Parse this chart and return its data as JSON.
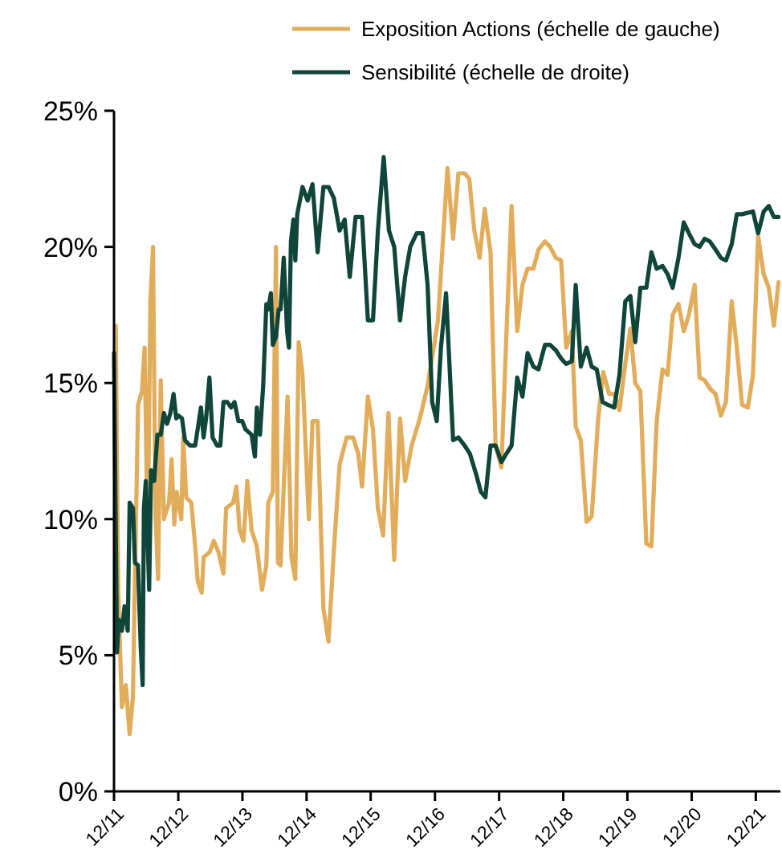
{
  "chart_data": {
    "type": "line",
    "legend": "top",
    "line_style": "solid",
    "marker": "none",
    "grid": false,
    "xlim": [
      "2011-12-01",
      "2022-04-20"
    ],
    "xticks": [
      {
        "value": "2011-12-01",
        "label": "12/11"
      },
      {
        "value": "2012-12-01",
        "label": "12/12"
      },
      {
        "value": "2013-12-01",
        "label": "12/13"
      },
      {
        "value": "2014-12-01",
        "label": "12/14"
      },
      {
        "value": "2015-12-01",
        "label": "12/15"
      },
      {
        "value": "2016-12-01",
        "label": "12/16"
      },
      {
        "value": "2017-12-01",
        "label": "12/17"
      },
      {
        "value": "2018-12-01",
        "label": "12/18"
      },
      {
        "value": "2019-12-01",
        "label": "12/19"
      },
      {
        "value": "2020-12-01",
        "label": "12/20"
      },
      {
        "value": "2021-12-01",
        "label": "12/21"
      }
    ],
    "ylim": [
      0,
      25
    ],
    "yticks": [
      {
        "value": 0,
        "label": "0%"
      },
      {
        "value": 5,
        "label": "5%"
      },
      {
        "value": 10,
        "label": "10%"
      },
      {
        "value": 15,
        "label": "15%"
      },
      {
        "value": 20,
        "label": "20%"
      },
      {
        "value": 25,
        "label": "25%"
      }
    ],
    "series": [
      {
        "name": "Exposition Actions (échelle de gauche)",
        "color": "#e2ad5b",
        "x": [
          "2011-12-11",
          "2011-12-25",
          "2012-01-15",
          "2012-02-06",
          "2012-02-28",
          "2012-03-18",
          "2012-03-29",
          "2012-04-16",
          "2012-05-08",
          "2012-05-23",
          "2012-06-10",
          "2012-06-25",
          "2012-07-10",
          "2012-07-24",
          "2012-08-08",
          "2012-08-23",
          "2012-09-10",
          "2012-10-09",
          "2012-10-24",
          "2012-11-08",
          "2012-11-22",
          "2012-12-18",
          "2012-12-29",
          "2013-01-15",
          "2013-02-13",
          "2013-03-07",
          "2013-03-22",
          "2013-04-13",
          "2013-04-24",
          "2013-05-30",
          "2013-06-21",
          "2013-07-17",
          "2013-08-15",
          "2013-08-30",
          "2013-10-09",
          "2013-10-28",
          "2013-11-15",
          "2013-12-07",
          "2013-12-29",
          "2014-01-22",
          "2014-02-21",
          "2014-03-22",
          "2014-04-16",
          "2014-04-27",
          "2014-05-23",
          "2014-06-10",
          "2014-06-21",
          "2014-07-06",
          "2014-07-24",
          "2014-08-15",
          "2014-09-06",
          "2014-09-28",
          "2014-10-17",
          "2014-11-08",
          "2014-12-14",
          "2015-01-04",
          "2015-02-02",
          "2015-03-07",
          "2015-04-05",
          "2015-05-05",
          "2015-06-07",
          "2015-07-17",
          "2015-08-23",
          "2015-09-21",
          "2015-10-13",
          "2015-11-15",
          "2015-12-14",
          "2016-01-11",
          "2016-02-10",
          "2016-03-11",
          "2016-04-13",
          "2016-05-16",
          "2016-06-14",
          "2016-07-21",
          "2016-09-06",
          "2016-10-20",
          "2016-12-18",
          "2017-02-10",
          "2017-03-14",
          "2017-04-13",
          "2017-05-19",
          "2017-06-14",
          "2017-07-13",
          "2017-08-12",
          "2017-09-10",
          "2017-10-13",
          "2017-11-11",
          "2017-12-14",
          "2018-01-11",
          "2018-02-10",
          "2018-03-14",
          "2018-04-13",
          "2018-05-12",
          "2018-06-14",
          "2018-07-13",
          "2018-08-19",
          "2018-09-17",
          "2018-10-20",
          "2018-11-19",
          "2018-12-18",
          "2019-01-19",
          "2019-02-10",
          "2019-03-11",
          "2019-04-13",
          "2019-05-12",
          "2019-06-18",
          "2019-07-17",
          "2019-08-19",
          "2019-09-17",
          "2019-10-17",
          "2019-11-19",
          "2019-12-18",
          "2020-01-15",
          "2020-02-13",
          "2020-03-18",
          "2020-04-16",
          "2020-05-16",
          "2020-06-18",
          "2020-07-17",
          "2020-08-15",
          "2020-09-17",
          "2020-10-17",
          "2020-11-15",
          "2020-12-18",
          "2021-01-15",
          "2021-02-13",
          "2021-03-14",
          "2021-04-16",
          "2021-05-16",
          "2021-06-14",
          "2021-07-17",
          "2021-08-15",
          "2021-09-14",
          "2021-10-17",
          "2021-11-15",
          "2021-12-14",
          "2022-01-15",
          "2022-02-13",
          "2022-03-14",
          "2022-04-09"
        ],
        "values": [
          17.1,
          7.3,
          3.1,
          3.9,
          2.1,
          3.5,
          7.8,
          14.2,
          14.7,
          16.3,
          9.2,
          18.0,
          20.0,
          10.2,
          7.8,
          15.1,
          10.0,
          10.6,
          12.2,
          9.8,
          11.0,
          10.0,
          13.0,
          10.8,
          10.6,
          9.0,
          7.7,
          7.3,
          8.6,
          8.8,
          9.2,
          8.8,
          8.0,
          10.4,
          10.6,
          11.2,
          9.6,
          9.2,
          11.4,
          9.6,
          9.0,
          7.4,
          8.3,
          10.6,
          11.0,
          20.0,
          8.4,
          8.3,
          11.2,
          14.5,
          8.6,
          7.8,
          16.5,
          15.3,
          10.0,
          13.6,
          13.6,
          6.7,
          5.5,
          8.8,
          12.0,
          13.0,
          13.0,
          12.4,
          11.2,
          14.5,
          13.3,
          10.4,
          9.4,
          13.9,
          8.5,
          13.7,
          11.4,
          12.7,
          13.7,
          14.9,
          17.3,
          22.9,
          20.3,
          22.7,
          22.7,
          22.5,
          20.6,
          19.6,
          21.4,
          19.8,
          12.7,
          11.9,
          16.7,
          21.5,
          16.9,
          18.6,
          19.2,
          19.2,
          19.9,
          20.2,
          20.0,
          19.6,
          19.5,
          16.3,
          16.9,
          13.4,
          12.9,
          9.9,
          10.1,
          13.7,
          15.4,
          14.6,
          14.6,
          14.0,
          15.7,
          17.0,
          15.0,
          14.7,
          9.1,
          9.0,
          13.6,
          15.5,
          15.3,
          17.5,
          17.9,
          16.9,
          17.5,
          18.6,
          15.2,
          15.1,
          14.8,
          14.6,
          13.8,
          14.3,
          18.0,
          16.3,
          14.2,
          14.1,
          15.3,
          20.4,
          19.0,
          18.5,
          17.1,
          18.7
        ]
      },
      {
        "name": "Sensibilité (échelle de droite)",
        "color": "#10453a",
        "x": [
          "2011-12-01",
          "2011-12-18",
          "2011-12-29",
          "2012-01-15",
          "2012-01-30",
          "2012-02-17",
          "2012-02-28",
          "2012-03-18",
          "2012-03-29",
          "2012-04-16",
          "2012-05-01",
          "2012-05-12",
          "2012-05-19",
          "2012-05-30",
          "2012-06-18",
          "2012-06-29",
          "2012-07-17",
          "2012-08-04",
          "2012-08-23",
          "2012-09-10",
          "2012-09-28",
          "2012-10-17",
          "2012-11-04",
          "2012-11-19",
          "2012-12-03",
          "2012-12-22",
          "2013-01-08",
          "2013-02-06",
          "2013-03-07",
          "2013-04-09",
          "2013-04-24",
          "2013-05-08",
          "2013-05-27",
          "2013-06-14",
          "2013-07-10",
          "2013-07-28",
          "2013-08-15",
          "2013-09-06",
          "2013-09-28",
          "2013-10-17",
          "2013-11-08",
          "2013-11-30",
          "2013-12-18",
          "2014-01-22",
          "2014-02-10",
          "2014-02-21",
          "2014-03-11",
          "2014-03-29",
          "2014-04-16",
          "2014-04-27",
          "2014-05-12",
          "2014-05-23",
          "2014-06-10",
          "2014-06-25",
          "2014-07-06",
          "2014-07-24",
          "2014-08-12",
          "2014-08-23",
          "2014-09-03",
          "2014-09-17",
          "2014-09-28",
          "2014-10-09",
          "2014-11-08",
          "2014-12-07",
          "2015-01-04",
          "2015-02-02",
          "2015-03-07",
          "2015-04-05",
          "2015-05-05",
          "2015-06-07",
          "2015-07-06",
          "2015-08-04",
          "2015-09-06",
          "2015-10-13",
          "2015-11-15",
          "2015-12-14",
          "2016-01-11",
          "2016-02-13",
          "2016-03-14",
          "2016-04-13",
          "2016-05-16",
          "2016-06-14",
          "2016-07-13",
          "2016-08-19",
          "2016-09-21",
          "2016-10-20",
          "2016-11-15",
          "2016-12-11",
          "2017-01-04",
          "2017-02-02",
          "2017-03-14",
          "2017-04-13",
          "2017-05-19",
          "2017-06-18",
          "2017-07-21",
          "2017-08-19",
          "2017-09-14",
          "2017-10-13",
          "2017-11-11",
          "2017-12-14",
          "2018-01-11",
          "2018-02-10",
          "2018-03-14",
          "2018-04-13",
          "2018-05-12",
          "2018-06-14",
          "2018-07-13",
          "2018-08-19",
          "2018-09-17",
          "2018-10-20",
          "2018-11-19",
          "2018-12-18",
          "2019-01-19",
          "2019-02-10",
          "2019-03-11",
          "2019-04-13",
          "2019-05-12",
          "2019-06-10",
          "2019-07-13",
          "2019-08-12",
          "2019-09-17",
          "2019-10-17",
          "2019-11-19",
          "2019-12-18",
          "2020-01-15",
          "2020-02-13",
          "2020-03-18",
          "2020-04-16",
          "2020-05-16",
          "2020-06-18",
          "2020-07-17",
          "2020-08-15",
          "2020-09-17",
          "2020-10-17",
          "2020-11-15",
          "2020-12-18",
          "2021-01-15",
          "2021-02-13",
          "2021-03-14",
          "2021-04-16",
          "2021-05-16",
          "2021-06-14",
          "2021-07-17",
          "2021-08-15",
          "2021-09-14",
          "2021-11-15",
          "2021-12-14",
          "2022-01-15",
          "2022-02-13",
          "2022-03-14",
          "2022-04-09"
        ],
        "values": [
          16.1,
          5.1,
          6.3,
          5.9,
          6.8,
          5.9,
          10.6,
          10.4,
          8.4,
          8.3,
          5.3,
          3.9,
          10.4,
          11.4,
          7.4,
          11.8,
          11.4,
          13.1,
          13.1,
          13.9,
          13.5,
          13.9,
          14.6,
          13.7,
          13.8,
          13.7,
          12.9,
          12.7,
          12.7,
          14.1,
          13.0,
          13.7,
          15.2,
          13.0,
          12.7,
          12.7,
          14.3,
          14.3,
          14.1,
          14.3,
          13.6,
          13.6,
          13.3,
          13.1,
          12.3,
          14.1,
          13.1,
          14.9,
          17.9,
          17.7,
          18.3,
          16.4,
          16.7,
          17.7,
          17.7,
          19.6,
          16.9,
          16.3,
          20.2,
          21.0,
          19.5,
          21.2,
          22.2,
          21.7,
          22.3,
          19.8,
          22.2,
          22.2,
          21.8,
          20.6,
          21.0,
          18.9,
          21.1,
          21.1,
          17.3,
          17.3,
          20.6,
          23.3,
          20.6,
          20.0,
          17.3,
          18.9,
          20.0,
          20.5,
          20.5,
          18.6,
          14.3,
          13.6,
          16.3,
          18.3,
          12.9,
          13.0,
          12.7,
          12.4,
          11.7,
          11.0,
          10.8,
          12.7,
          12.7,
          12.1,
          12.4,
          12.7,
          15.2,
          14.5,
          16.1,
          15.6,
          15.5,
          16.4,
          16.4,
          16.2,
          15.9,
          15.7,
          15.8,
          18.6,
          15.6,
          16.3,
          15.6,
          15.5,
          14.3,
          14.2,
          14.1,
          15.3,
          18.0,
          18.2,
          16.5,
          18.5,
          18.5,
          19.8,
          19.2,
          19.3,
          19.0,
          18.5,
          19.6,
          20.9,
          20.5,
          20.1,
          20.0,
          20.3,
          20.2,
          19.9,
          19.6,
          19.5,
          20.1,
          21.2,
          21.2,
          21.3,
          20.5,
          21.3,
          21.5,
          21.1,
          21.1
        ]
      }
    ]
  }
}
